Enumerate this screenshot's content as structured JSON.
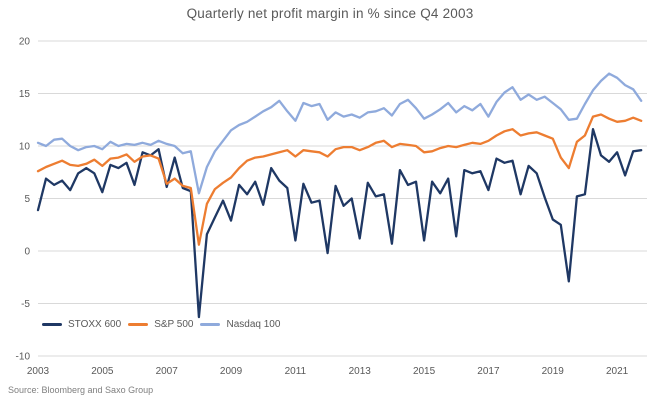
{
  "title": "Quarterly net profit margin in % since Q4 2003",
  "source": "Source: Bloomberg and Saxo Group",
  "colors": {
    "stoxx": "#1f3864",
    "sp500": "#ed7d31",
    "nasdaq": "#8faadc",
    "gridline": "#d9d9d9",
    "axis_text": "#595959",
    "title_text": "#595959",
    "source_text": "#7f7f7f",
    "background": "#ffffff"
  },
  "chart_data": {
    "type": "line",
    "title": "Quarterly net profit margin in % since Q4 2003",
    "xlabel": "",
    "ylabel": "",
    "frequency": "quarterly",
    "x_start": "Q4 2003",
    "ylim": [
      -10,
      20
    ],
    "y_ticks": [
      20,
      15,
      10,
      5,
      0,
      -5,
      -10
    ],
    "x_tick_labels": [
      "2003",
      "2005",
      "2007",
      "2009",
      "2011",
      "2013",
      "2015",
      "2017",
      "2019",
      "2021"
    ],
    "x_tick_indices": [
      0,
      8,
      16,
      24,
      32,
      40,
      48,
      56,
      64,
      72
    ],
    "grid": "horizontal-only",
    "legend_position": "bottom-left-inside",
    "series": [
      {
        "name": "STOXX 600",
        "color": "#1f3864",
        "values": [
          3.9,
          6.9,
          6.3,
          6.7,
          5.8,
          7.4,
          7.9,
          7.4,
          5.6,
          8.2,
          7.9,
          8.4,
          6.3,
          9.4,
          9.1,
          9.7,
          6.1,
          8.9,
          6.0,
          5.7,
          -6.3,
          1.6,
          3.2,
          4.8,
          2.9,
          6.3,
          5.4,
          6.6,
          4.4,
          7.9,
          6.7,
          6.0,
          1.0,
          6.4,
          4.6,
          4.8,
          -0.2,
          6.2,
          4.3,
          5.0,
          1.2,
          6.5,
          5.2,
          5.4,
          0.7,
          7.7,
          6.3,
          6.6,
          1.0,
          6.6,
          5.5,
          6.9,
          1.4,
          7.7,
          7.4,
          7.6,
          5.8,
          8.8,
          8.4,
          8.6,
          5.4,
          8.1,
          7.4,
          5.1,
          3.0,
          2.5,
          -2.9,
          5.2,
          5.4,
          11.6,
          9.1,
          8.5,
          9.4,
          7.2,
          9.5,
          9.6
        ]
      },
      {
        "name": "S&P 500",
        "color": "#ed7d31",
        "values": [
          7.6,
          8.0,
          8.3,
          8.6,
          8.2,
          8.1,
          8.3,
          8.7,
          8.1,
          8.8,
          8.9,
          9.2,
          8.5,
          9.0,
          9.1,
          8.8,
          6.4,
          6.9,
          6.2,
          6.0,
          0.6,
          4.5,
          5.9,
          6.5,
          7.0,
          7.9,
          8.6,
          8.9,
          9.0,
          9.2,
          9.4,
          9.6,
          9.0,
          9.6,
          9.5,
          9.4,
          9.0,
          9.7,
          9.9,
          9.9,
          9.6,
          9.9,
          10.3,
          10.5,
          9.9,
          10.2,
          10.1,
          10.0,
          9.4,
          9.5,
          9.8,
          10.0,
          9.9,
          10.1,
          10.3,
          10.2,
          10.5,
          11.0,
          11.4,
          11.6,
          11.0,
          11.2,
          11.3,
          11.0,
          10.7,
          8.9,
          7.9,
          10.4,
          11.0,
          12.8,
          13.0,
          12.6,
          12.3,
          12.4,
          12.7,
          12.4
        ]
      },
      {
        "name": "Nasdaq 100",
        "color": "#8faadc",
        "values": [
          10.3,
          10.0,
          10.6,
          10.7,
          10.0,
          9.6,
          9.9,
          10.0,
          9.7,
          10.4,
          10.0,
          10.2,
          10.1,
          10.3,
          10.1,
          10.5,
          10.2,
          10.0,
          9.3,
          9.5,
          5.5,
          8.0,
          9.5,
          10.5,
          11.5,
          12.0,
          12.3,
          12.8,
          13.3,
          13.7,
          14.3,
          13.3,
          12.4,
          14.1,
          13.8,
          14.0,
          12.5,
          13.2,
          12.8,
          13.0,
          12.7,
          13.2,
          13.3,
          13.6,
          12.9,
          14.0,
          14.4,
          13.6,
          12.6,
          13.0,
          13.5,
          14.1,
          13.2,
          13.8,
          13.4,
          14.0,
          12.8,
          14.2,
          15.1,
          15.6,
          14.4,
          14.9,
          14.4,
          14.7,
          14.1,
          13.5,
          12.5,
          12.6,
          14.0,
          15.3,
          16.2,
          16.9,
          16.5,
          15.8,
          15.4,
          14.3
        ]
      }
    ]
  }
}
